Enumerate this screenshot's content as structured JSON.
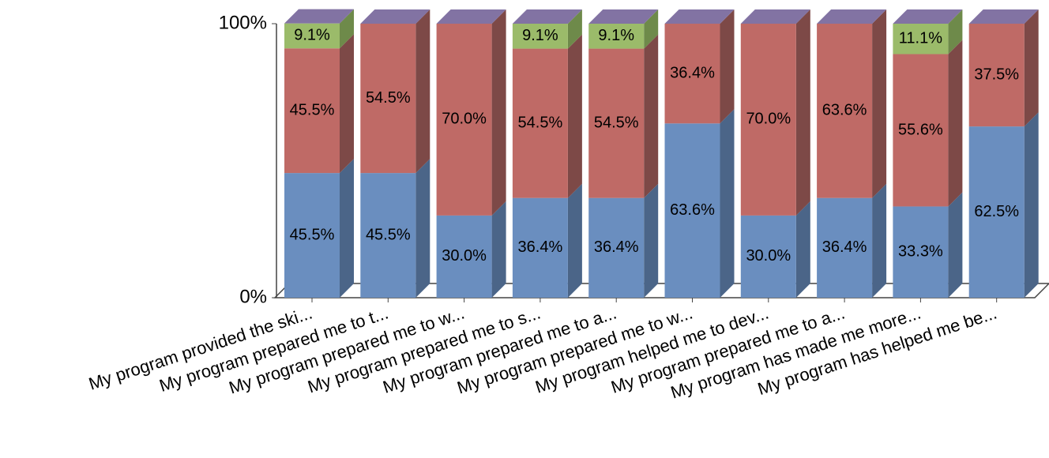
{
  "chart_data": {
    "type": "stacked_bar_3d",
    "categories": [
      "My program provided the ski...",
      "My program prepared me to t...",
      "My program prepared me to w...",
      "My program prepared me to s...",
      "My program prepared me to a...",
      "My program prepared me to w...",
      "My program helped me to dev...",
      "My program prepared me to a...",
      "My program has made me more...",
      "My program has helped me be..."
    ],
    "series": [
      {
        "color": "#6a8ebf",
        "side": "#4b6588",
        "values": [
          45.5,
          45.5,
          30.0,
          36.4,
          36.4,
          63.6,
          30.0,
          36.4,
          33.3,
          62.5
        ],
        "value_labels": [
          "45.5%",
          "45.5%",
          "30.0%",
          "36.4%",
          "36.4%",
          "63.6%",
          "30.0%",
          "36.4%",
          "33.3%",
          "62.5%"
        ]
      },
      {
        "color": "#bf6a66",
        "side": "#7d4947",
        "values": [
          45.5,
          54.5,
          70.0,
          54.5,
          54.5,
          36.4,
          70.0,
          63.6,
          55.6,
          37.5
        ],
        "value_labels": [
          "45.5%",
          "54.5%",
          "70.0%",
          "54.5%",
          "54.5%",
          "36.4%",
          "70.0%",
          "63.6%",
          "55.6%",
          "37.5%"
        ]
      },
      {
        "color": "#9bbb6a",
        "side": "#6e8a4a",
        "values": [
          9.1,
          null,
          null,
          9.1,
          9.1,
          null,
          null,
          null,
          11.1,
          null
        ],
        "value_labels": [
          "9.1%",
          null,
          null,
          "9.1%",
          "9.1%",
          null,
          null,
          null,
          "11.1%",
          null
        ]
      }
    ],
    "top_color": "#8273a3",
    "ylim": [
      0,
      100
    ],
    "yticks": [
      {
        "value": 0,
        "label": "0%"
      },
      {
        "value": 100,
        "label": "100%"
      }
    ]
  }
}
